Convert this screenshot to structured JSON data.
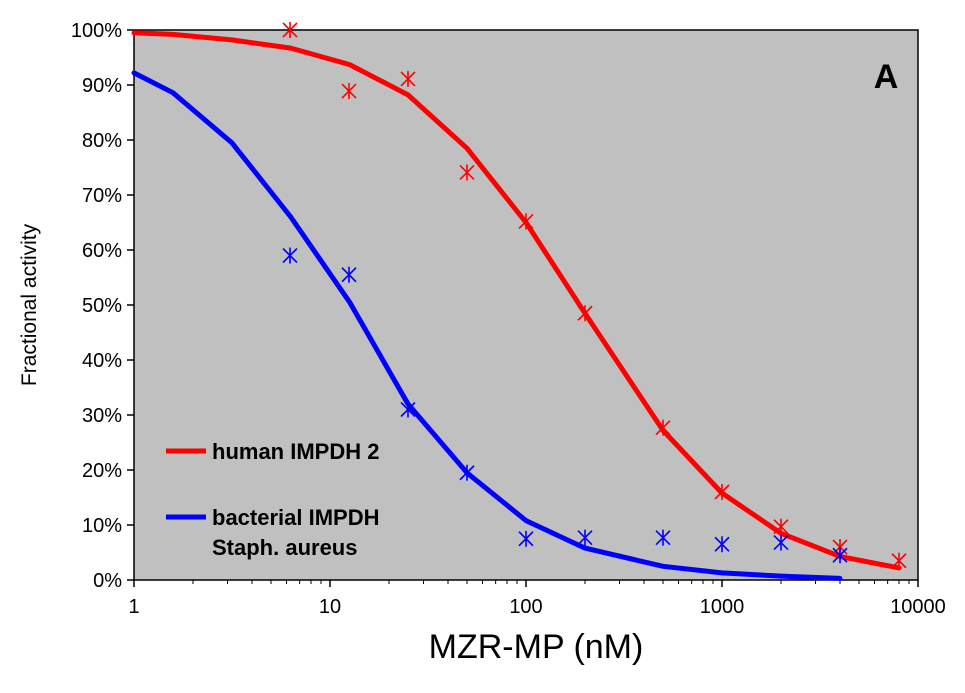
{
  "chart_data": {
    "type": "line",
    "xlabel": "MZR-MP (nM)",
    "ylabel": "Fractional activity",
    "annotation": "A",
    "x_scale": "log",
    "xlim": [
      1,
      10000
    ],
    "ylim": [
      0,
      1
    ],
    "x_ticks": [
      1,
      10,
      100,
      1000,
      10000
    ],
    "x_tick_labels": [
      "1",
      "10",
      "100",
      "1000",
      "10000"
    ],
    "y_ticks": [
      0,
      0.1,
      0.2,
      0.3,
      0.4,
      0.5,
      0.6,
      0.7,
      0.8,
      0.9,
      1.0
    ],
    "y_tick_labels": [
      "0%",
      "10%",
      "20%",
      "30%",
      "40%",
      "50%",
      "60%",
      "70%",
      "80%",
      "90%",
      "100%"
    ],
    "grid": false,
    "plot_background": "#c0c0c0",
    "legend_position": "bottom-left",
    "series": [
      {
        "name": "human IMPDH 2",
        "color": "#ff0000",
        "fit_x": [
          1,
          1.58,
          3.16,
          6.31,
          12.6,
          25,
          50,
          100,
          200,
          500,
          1000,
          2000,
          4000,
          8000
        ],
        "fit_y": [
          0.995,
          0.992,
          0.982,
          0.967,
          0.937,
          0.882,
          0.785,
          0.65,
          0.485,
          0.272,
          0.158,
          0.085,
          0.043,
          0.022
        ],
        "points_x": [
          6.25,
          12.5,
          25,
          50,
          100,
          200,
          500,
          1000,
          2000,
          4000,
          8000
        ],
        "points_y": [
          1.0,
          0.889,
          0.911,
          0.741,
          0.652,
          0.485,
          0.277,
          0.16,
          0.097,
          0.06,
          0.035
        ]
      },
      {
        "name_lines": [
          "bacterial IMPDH",
          "Staph. aureus"
        ],
        "color": "#0000ff",
        "fit_x": [
          1,
          1.58,
          3.16,
          6.31,
          12.6,
          25,
          50,
          100,
          200,
          500,
          1000,
          2000,
          4000
        ],
        "fit_y": [
          0.922,
          0.886,
          0.795,
          0.66,
          0.505,
          0.32,
          0.195,
          0.108,
          0.058,
          0.025,
          0.013,
          0.007,
          0.003
        ],
        "points_x": [
          6.25,
          12.5,
          25,
          50,
          100,
          200,
          500,
          1000,
          2000,
          4000
        ],
        "points_y": [
          0.59,
          0.555,
          0.31,
          0.195,
          0.075,
          0.077,
          0.077,
          0.065,
          0.068,
          0.045
        ]
      }
    ]
  }
}
